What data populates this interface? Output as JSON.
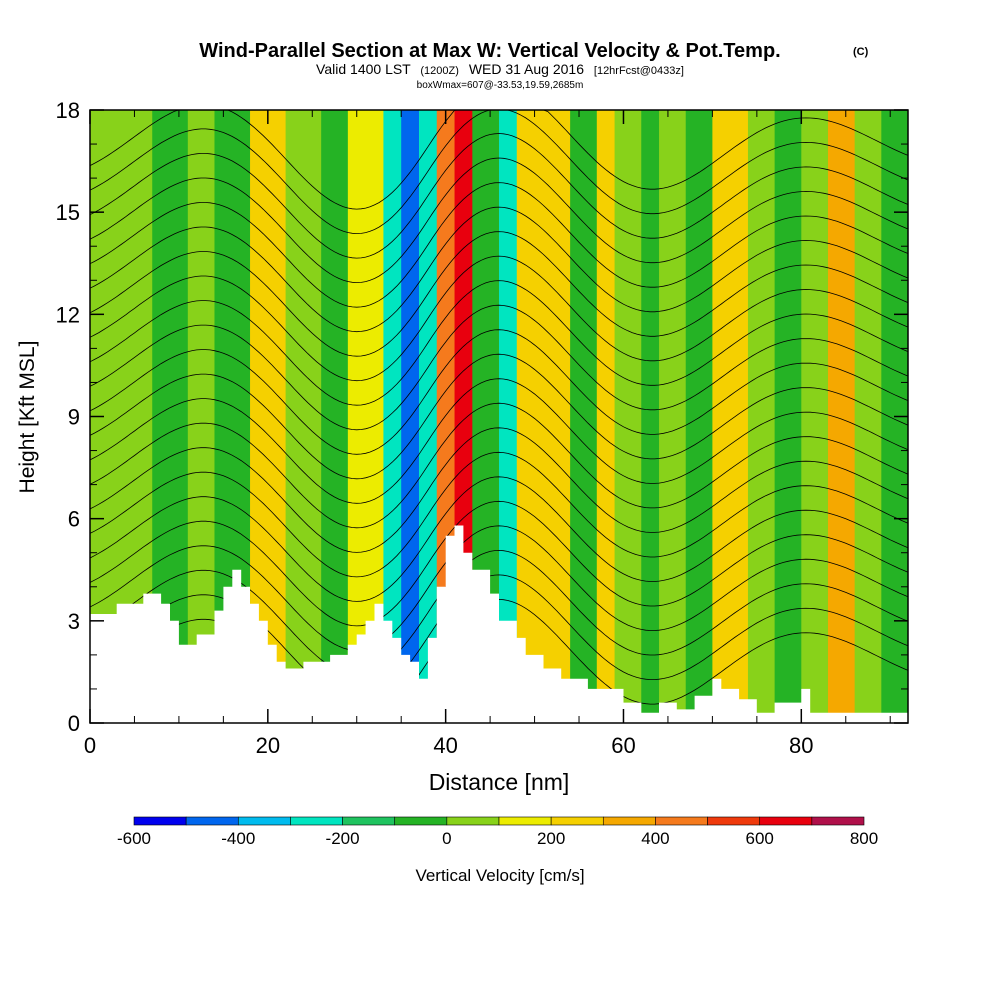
{
  "chart_data": {
    "type": "heatmap",
    "title": "Wind-Parallel Section at Max W: Vertical Velocity & Pot.Temp.",
    "copyright": "(C)",
    "subtitle_valid": "Valid 1400 LST",
    "subtitle_utc": "(1200Z)",
    "subtitle_date": "WED 31 Aug 2016",
    "subtitle_fcst": "[12hrFcst@0433z]",
    "subtitle_box": "boxWmax=607@-33.53,19.59,2685m",
    "xlabel": "Distance [nm]",
    "ylabel": "Height [Kft MSL]",
    "xlim": [
      0,
      92
    ],
    "ylim": [
      0,
      18
    ],
    "x_ticks": [
      0,
      20,
      40,
      60,
      80
    ],
    "y_ticks": [
      0,
      3,
      6,
      9,
      12,
      15,
      18
    ],
    "colorbar": {
      "label": "Vertical Velocity [cm/s]",
      "ticks": [
        -600,
        -400,
        -200,
        0,
        200,
        400,
        600,
        800
      ],
      "levels": [
        -600,
        -500,
        -400,
        -300,
        -200,
        -100,
        0,
        100,
        200,
        300,
        400,
        500,
        600,
        700,
        800
      ],
      "colors": [
        "#0000ee",
        "#0066ee",
        "#00bbee",
        "#00e5c0",
        "#1fc35f",
        "#25b325",
        "#88d21a",
        "#ecec00",
        "#f5d000",
        "#f5a800",
        "#f57a1d",
        "#ef3a0c",
        "#e8000e",
        "#b0104a"
      ]
    },
    "vertical_velocity_columns": [
      {
        "x0": 0,
        "x1": 3,
        "w": 0
      },
      {
        "x0": 3,
        "x1": 7,
        "w": 60
      },
      {
        "x0": 7,
        "x1": 11,
        "w": -30
      },
      {
        "x0": 11,
        "x1": 14,
        "w": 40
      },
      {
        "x0": 14,
        "x1": 18,
        "w": -60
      },
      {
        "x0": 18,
        "x1": 22,
        "w": 220
      },
      {
        "x0": 22,
        "x1": 26,
        "w": 60
      },
      {
        "x0": 26,
        "x1": 29,
        "w": -40
      },
      {
        "x0": 29,
        "x1": 33,
        "w": 190
      },
      {
        "x0": 33,
        "x1": 35,
        "w": -220
      },
      {
        "x0": 35,
        "x1": 37,
        "w": -470
      },
      {
        "x0": 37,
        "x1": 39,
        "w": -300
      },
      {
        "x0": 39,
        "x1": 41,
        "w": 420
      },
      {
        "x0": 41,
        "x1": 43,
        "w": 600
      },
      {
        "x0": 43,
        "x1": 46,
        "w": -60
      },
      {
        "x0": 46,
        "x1": 48,
        "w": -240
      },
      {
        "x0": 48,
        "x1": 51,
        "w": 230
      },
      {
        "x0": 51,
        "x1": 54,
        "w": 270
      },
      {
        "x0": 54,
        "x1": 57,
        "w": -60
      },
      {
        "x0": 57,
        "x1": 59,
        "w": 230
      },
      {
        "x0": 59,
        "x1": 62,
        "w": 60
      },
      {
        "x0": 62,
        "x1": 64,
        "w": -50
      },
      {
        "x0": 64,
        "x1": 67,
        "w": 60
      },
      {
        "x0": 67,
        "x1": 70,
        "w": -60
      },
      {
        "x0": 70,
        "x1": 74,
        "w": 250
      },
      {
        "x0": 74,
        "x1": 77,
        "w": 60
      },
      {
        "x0": 77,
        "x1": 80,
        "w": -40
      },
      {
        "x0": 80,
        "x1": 83,
        "w": 60
      },
      {
        "x0": 83,
        "x1": 86,
        "w": 320
      },
      {
        "x0": 86,
        "x1": 89,
        "w": 60
      },
      {
        "x0": 89,
        "x1": 92,
        "w": -50
      }
    ],
    "terrain_profile": {
      "x": [
        0,
        3,
        3,
        6,
        6,
        8,
        8,
        9,
        9,
        10,
        10,
        12,
        12,
        14,
        14,
        15,
        15,
        16,
        16,
        17,
        17,
        18,
        18,
        19,
        19,
        20,
        20,
        21,
        21,
        22,
        22,
        24,
        24,
        27,
        27,
        29,
        29,
        30,
        30,
        31,
        31,
        32,
        32,
        33,
        33,
        34,
        34,
        35,
        35,
        36,
        36,
        37,
        37,
        38,
        38,
        39,
        39,
        40,
        40,
        41,
        41,
        42,
        42,
        43,
        43,
        45,
        45,
        46,
        46,
        48,
        48,
        49,
        49,
        51,
        51,
        53,
        53,
        56,
        56,
        60,
        60,
        62,
        62,
        64,
        64,
        66,
        66,
        68,
        68,
        70,
        70,
        71,
        71,
        73,
        73,
        75,
        75,
        77,
        77,
        80,
        80,
        81,
        81,
        92
      ],
      "y": [
        3.2,
        3.2,
        3.5,
        3.5,
        3.8,
        3.8,
        3.5,
        3.5,
        3.0,
        3.0,
        2.3,
        2.3,
        2.6,
        2.6,
        3.3,
        3.3,
        4.0,
        4.0,
        4.5,
        4.5,
        4.0,
        4.0,
        3.5,
        3.5,
        3.0,
        3.0,
        2.3,
        2.3,
        1.8,
        1.8,
        1.6,
        1.6,
        1.8,
        1.8,
        2.0,
        2.0,
        2.3,
        2.3,
        2.6,
        2.6,
        3.0,
        3.0,
        3.5,
        3.5,
        3.0,
        3.0,
        2.5,
        2.5,
        2.0,
        2.0,
        1.8,
        1.8,
        1.3,
        1.3,
        2.5,
        2.5,
        4.0,
        4.0,
        5.5,
        5.5,
        5.8,
        5.8,
        5.0,
        5.0,
        4.5,
        4.5,
        3.8,
        3.8,
        3.0,
        3.0,
        2.5,
        2.5,
        2.0,
        2.0,
        1.6,
        1.6,
        1.3,
        1.3,
        1.0,
        1.0,
        0.6,
        0.6,
        0.3,
        0.3,
        0.6,
        0.6,
        0.4,
        0.4,
        0.8,
        0.8,
        1.3,
        1.3,
        1.0,
        1.0,
        0.7,
        0.7,
        0.3,
        0.3,
        0.6,
        0.6,
        1.0,
        1.0,
        0.3,
        0.3
      ]
    },
    "theta_contours": {
      "levels_count": 22,
      "base_height": 1.8,
      "spacing": 0.72,
      "wave_center_x": 38,
      "amplitude": 2.2
    }
  }
}
